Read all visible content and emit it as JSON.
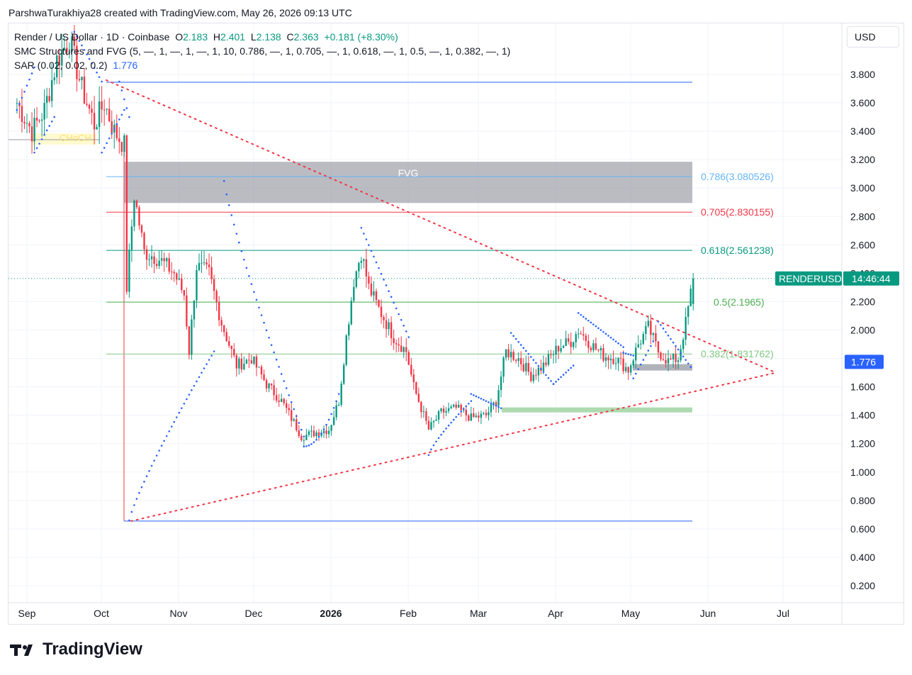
{
  "caption": "ParshwaTurakhiya28 created with TradingView.com, May 26, 2026 09:13 UTC",
  "legend": {
    "symbol_line": "Render / US Dollar · 1D · Coinbase",
    "o_label": "O",
    "o_value": "2.183",
    "h_label": "H",
    "h_value": "2.401",
    "l_label": "L",
    "l_value": "2.138",
    "c_label": "C",
    "c_value": "2.363",
    "change": "+0.181 (+8.30%)",
    "indicator_smc": "SMC Structures and FVG (5, —, 1, —, 1, —, 1, 10, 0.786, —, 1, 0.705, —, 1, 0.618, —, 1, 0.5, —, 1, 0.382, —, 1)",
    "indicator_sar": "SAR (0.02, 0.02, 0.2)",
    "sar_value": "1.776"
  },
  "currency": "USD",
  "brand": "TradingView",
  "colors": {
    "up": "#089981",
    "down": "#f23645",
    "sar": "#2962ff",
    "fvg": "#9598a1",
    "level_blue": "#2962ff",
    "trend": "#f23645"
  },
  "chart_data": {
    "type": "candlestick",
    "title": "Render / US Dollar · 1D · Coinbase",
    "x_ticks": [
      "Sep",
      "Oct",
      "Nov",
      "Dec",
      "2026",
      "Feb",
      "Mar",
      "Apr",
      "May",
      "Jun",
      "Jul"
    ],
    "y_ticks": [
      "3.800",
      "3.600",
      "3.400",
      "3.200",
      "3.000",
      "2.800",
      "2.600",
      "2.400",
      "2.200",
      "2.000",
      "1.800",
      "1.600",
      "1.400",
      "1.200",
      "1.000",
      "0.800",
      "0.600",
      "0.400",
      "0.200"
    ],
    "ylim": [
      0.1,
      4.2
    ],
    "grid": true,
    "price_label": {
      "symbol": "RENDERUSD",
      "countdown": "14:46:44",
      "price": 2.363
    },
    "sar_label": {
      "value": "1.776",
      "price": 1.776
    },
    "fib_levels": [
      {
        "label": "0.786(3.080526)",
        "price": 3.080526,
        "color": "#64b5f6"
      },
      {
        "label": "0.705(2.830155)",
        "price": 2.830155,
        "color": "#f23645"
      },
      {
        "label": "0.618(2.561238)",
        "price": 2.561238,
        "color": "#089981"
      },
      {
        "label": "0.5(2.1965)",
        "price": 2.1965,
        "color": "#4caf50"
      },
      {
        "label": "0.382(1.831762)",
        "price": 1.831762,
        "color": "#81c784"
      }
    ],
    "levels": {
      "top": 3.745,
      "bottom": 0.655
    },
    "fvg": {
      "label": "FVG",
      "top": 3.185,
      "bottom": 2.895
    },
    "choch_label": "CHoCH",
    "close_path": [
      [
        "Aug 28",
        3.6
      ],
      [
        "Sep 3",
        3.4
      ],
      [
        "Sep 8",
        3.55
      ],
      [
        "Sep 13",
        3.9
      ],
      [
        "Sep 18",
        4.05
      ],
      [
        "Sep 23",
        3.7
      ],
      [
        "Sep 28",
        3.45
      ],
      [
        "Oct 2",
        3.6
      ],
      [
        "Oct 6",
        3.4
      ],
      [
        "Oct 10",
        3.3
      ],
      [
        "Oct 11",
        2.3
      ],
      [
        "Oct 14",
        2.95
      ],
      [
        "Oct 18",
        2.55
      ],
      [
        "Oct 24",
        2.5
      ],
      [
        "Oct 30",
        2.4
      ],
      [
        "Nov 3",
        2.25
      ],
      [
        "Nov 5",
        1.85
      ],
      [
        "Nov 8",
        2.45
      ],
      [
        "Nov 13",
        2.4
      ],
      [
        "Nov 18",
        2.05
      ],
      [
        "Nov 24",
        1.75
      ],
      [
        "Nov 30",
        1.8
      ],
      [
        "Dec 6",
        1.62
      ],
      [
        "Dec 12",
        1.5
      ],
      [
        "Dec 17",
        1.35
      ],
      [
        "Dec 20",
        1.25
      ],
      [
        "Dec 26",
        1.28
      ],
      [
        "Dec 31",
        1.3
      ],
      [
        "Jan 4",
        1.5
      ],
      [
        "Jan 7",
        1.95
      ],
      [
        "Jan 10",
        2.35
      ],
      [
        "Jan 13",
        2.55
      ],
      [
        "Jan 16",
        2.3
      ],
      [
        "Jan 20",
        2.15
      ],
      [
        "Jan 26",
        1.95
      ],
      [
        "Jan 31",
        1.85
      ],
      [
        "Feb 3",
        1.6
      ],
      [
        "Feb 6",
        1.45
      ],
      [
        "Feb 9",
        1.3
      ],
      [
        "Feb 14",
        1.42
      ],
      [
        "Feb 20",
        1.45
      ],
      [
        "Feb 26",
        1.38
      ],
      [
        "Mar 4",
        1.4
      ],
      [
        "Mar 8",
        1.5
      ],
      [
        "Mar 12",
        1.85
      ],
      [
        "Mar 17",
        1.8
      ],
      [
        "Mar 22",
        1.68
      ],
      [
        "Mar 27",
        1.75
      ],
      [
        "Apr 2",
        1.88
      ],
      [
        "Apr 7",
        1.92
      ],
      [
        "Apr 10",
        2.0
      ],
      [
        "Apr 15",
        1.9
      ],
      [
        "Apr 20",
        1.82
      ],
      [
        "Apr 25",
        1.8
      ],
      [
        "Apr 30",
        1.72
      ],
      [
        "May 4",
        1.9
      ],
      [
        "May 8",
        2.02
      ],
      [
        "May 12",
        1.85
      ],
      [
        "May 16",
        1.78
      ],
      [
        "May 20",
        1.8
      ],
      [
        "May 23",
        2.05
      ],
      [
        "May 26",
        2.363
      ]
    ],
    "annotations": [
      "FVG",
      "CHoCH"
    ]
  }
}
